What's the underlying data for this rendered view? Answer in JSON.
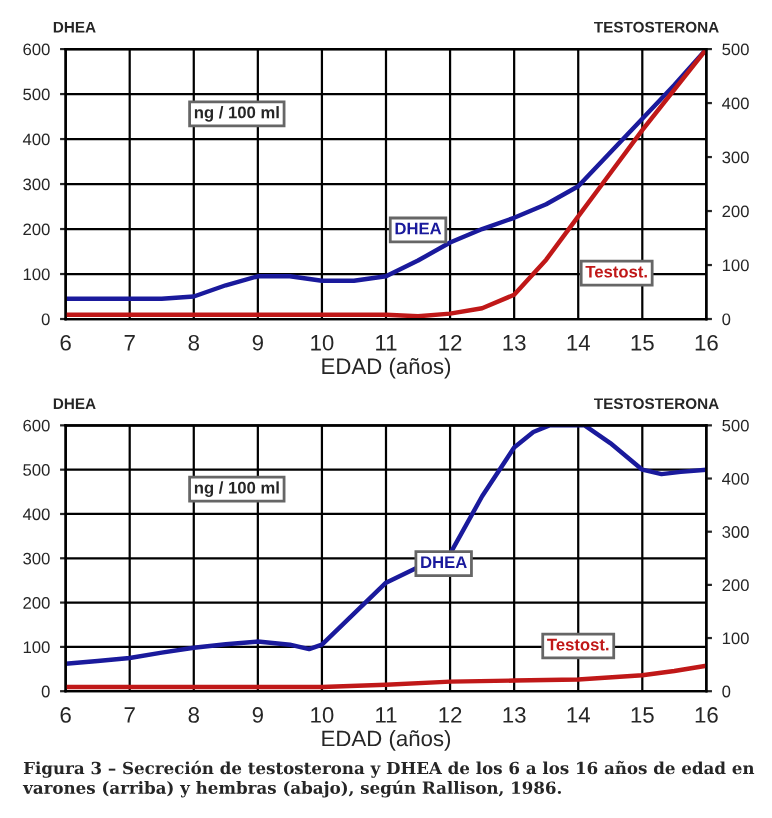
{
  "chart_data": [
    {
      "type": "line",
      "xlabel": "EDAD (años)",
      "ylabel": "DHEA",
      "y2label": "TESTOSTERONA",
      "xlim": [
        6,
        16
      ],
      "xticks": [
        6,
        7,
        8,
        9,
        10,
        11,
        12,
        13,
        14,
        15,
        16
      ],
      "ylim": [
        0,
        600
      ],
      "yticks": [
        0,
        100,
        200,
        300,
        400,
        500,
        600
      ],
      "y2lim": [
        0,
        500
      ],
      "y2ticks": [
        0,
        100,
        200,
        300,
        400,
        500
      ],
      "grid": true,
      "legend": false,
      "annotations": [
        "ng / 100 ml"
      ],
      "series": [
        {
          "name": "DHEA",
          "color": "#1a1a9c",
          "x": [
            6,
            7,
            7.5,
            8,
            8.5,
            9,
            9.5,
            10,
            10.5,
            11,
            11.5,
            12,
            12.5,
            13,
            13.5,
            14,
            14.5,
            15,
            15.5,
            16
          ],
          "values": [
            45,
            45,
            45,
            50,
            75,
            95,
            95,
            85,
            85,
            95,
            130,
            170,
            200,
            225,
            255,
            295,
            370,
            445,
            520,
            600
          ]
        },
        {
          "name": "Testost.",
          "color": "#c01818",
          "axis": "y2",
          "x": [
            6,
            8,
            10,
            11,
            11.5,
            12,
            12.5,
            13,
            13.5,
            14,
            14.5,
            15,
            15.5,
            16
          ],
          "values": [
            8,
            8,
            8,
            8,
            5,
            10,
            20,
            45,
            110,
            190,
            270,
            350,
            425,
            500
          ]
        }
      ]
    },
    {
      "type": "line",
      "xlabel": "EDAD (años)",
      "ylabel": "DHEA",
      "y2label": "TESTOSTERONA",
      "xlim": [
        6,
        16
      ],
      "xticks": [
        6,
        7,
        8,
        9,
        10,
        11,
        12,
        13,
        14,
        15,
        16
      ],
      "ylim": [
        0,
        600
      ],
      "yticks": [
        0,
        100,
        200,
        300,
        400,
        500,
        600
      ],
      "y2lim": [
        0,
        500
      ],
      "y2ticks": [
        0,
        100,
        200,
        300,
        400,
        500
      ],
      "grid": true,
      "legend": false,
      "annotations": [
        "ng / 100 ml",
        "Figura 3 – Secreción de testosterona y DHEA de los 6 a los 16 años de edad en varones (arriba) y hembras (abajo), según Rallison, 1986."
      ],
      "series": [
        {
          "name": "DHEA",
          "color": "#1a1a9c",
          "x": [
            6,
            6.5,
            7,
            7.5,
            8,
            8.5,
            9,
            9.5,
            9.8,
            10,
            10.5,
            11,
            11.5,
            12,
            12.5,
            13,
            13.3,
            13.55,
            14.1,
            14.5,
            15,
            15.3,
            15.6,
            16
          ],
          "values": [
            62,
            68,
            75,
            87,
            98,
            106,
            112,
            105,
            95,
            105,
            175,
            245,
            280,
            310,
            440,
            550,
            585,
            600,
            600,
            560,
            500,
            490,
            495,
            500
          ]
        },
        {
          "name": "Testost.",
          "color": "#c01818",
          "axis": "y2",
          "x": [
            6,
            8,
            10,
            11,
            12,
            13,
            14,
            15,
            15.5,
            16
          ],
          "values": [
            8,
            8,
            8,
            12,
            18,
            20,
            22,
            30,
            38,
            48
          ]
        }
      ]
    }
  ]
}
